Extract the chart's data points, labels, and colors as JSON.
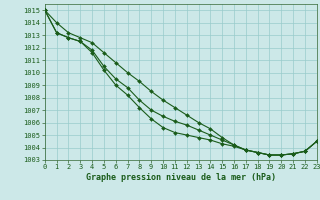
{
  "xlabel": "Graphe pression niveau de la mer (hPa)",
  "ylim": [
    1003,
    1015.5
  ],
  "xlim": [
    0,
    23
  ],
  "yticks": [
    1003,
    1004,
    1005,
    1006,
    1007,
    1008,
    1009,
    1010,
    1011,
    1012,
    1013,
    1014,
    1015
  ],
  "xticks": [
    0,
    1,
    2,
    3,
    4,
    5,
    6,
    7,
    8,
    9,
    10,
    11,
    12,
    13,
    14,
    15,
    16,
    17,
    18,
    19,
    20,
    21,
    22,
    23
  ],
  "bg_color": "#cce8e8",
  "grid_color": "#99cccc",
  "line_color": "#1a5c1a",
  "series": [
    [
      1015.0,
      1014.0,
      1013.2,
      1012.8,
      1012.4,
      1011.6,
      1010.8,
      1010.0,
      1009.3,
      1008.5,
      1007.8,
      1007.2,
      1006.6,
      1006.0,
      1005.5,
      1004.8,
      1004.2,
      1003.8,
      1003.6,
      1003.4,
      1003.4,
      1003.5,
      1003.7,
      1004.5
    ],
    [
      1015.0,
      1013.2,
      1012.8,
      1012.5,
      1011.8,
      1010.5,
      1009.5,
      1008.8,
      1007.8,
      1007.0,
      1006.5,
      1006.1,
      1005.8,
      1005.4,
      1005.0,
      1004.6,
      1004.2,
      1003.8,
      1003.6,
      1003.4,
      1003.4,
      1003.5,
      1003.7,
      1004.5
    ],
    [
      1015.0,
      1013.2,
      1012.8,
      1012.5,
      1011.6,
      1010.2,
      1009.0,
      1008.2,
      1007.2,
      1006.3,
      1005.6,
      1005.2,
      1005.0,
      1004.8,
      1004.6,
      1004.3,
      1004.1,
      1003.8,
      1003.6,
      1003.4,
      1003.4,
      1003.5,
      1003.7,
      1004.5
    ]
  ],
  "marker": "D",
  "markersize": 2.0,
  "linewidth": 0.8,
  "tick_fontsize": 5.0,
  "label_fontsize": 6.0,
  "label_fontweight": "bold"
}
